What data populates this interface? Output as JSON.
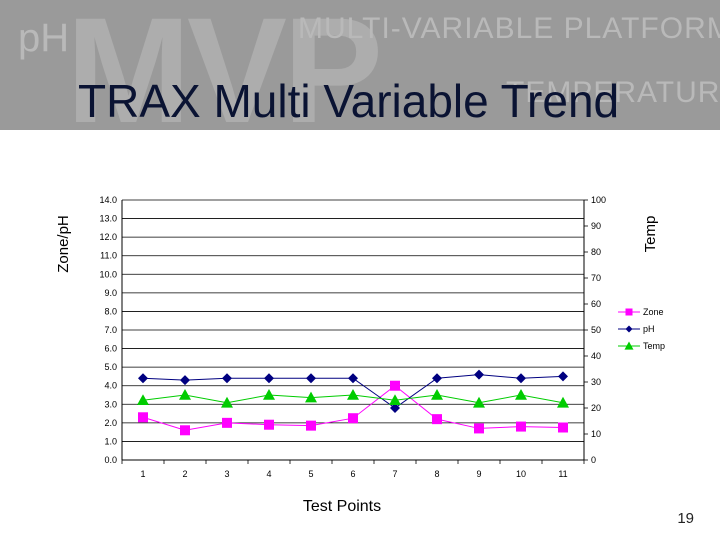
{
  "banner": {
    "watermark_ph": "pH",
    "watermark_mvp": "MVP",
    "watermark_line1": "MULTI-VARIABLE PLATFORM",
    "watermark_line2": "TEMPERATURE"
  },
  "slide": {
    "title": "TRAX Multi Variable Trend",
    "page_number": "19"
  },
  "chart_data": {
    "type": "line",
    "xlabel": "Test Points",
    "ylabel": "Zone/pH",
    "y2label": "Temp",
    "categories": [
      "1",
      "2",
      "3",
      "4",
      "5",
      "6",
      "7",
      "8",
      "9",
      "10",
      "11"
    ],
    "ylim": [
      0,
      14
    ],
    "y_ticks": [
      "0.0",
      "1.0",
      "2.0",
      "3.0",
      "4.0",
      "5.0",
      "6.0",
      "7.0",
      "8.0",
      "9.0",
      "10.0",
      "11.0",
      "12.0",
      "13.0",
      "14.0"
    ],
    "y2lim": [
      0,
      100
    ],
    "y2_ticks": [
      "0",
      "10",
      "20",
      "30",
      "40",
      "50",
      "60",
      "70",
      "80",
      "90",
      "100"
    ],
    "grid": "horizontal",
    "legend_position": "right",
    "series": [
      {
        "name": "Zone",
        "axis": "left",
        "marker": "square",
        "color": "#ff00ff",
        "values": [
          2.3,
          1.6,
          2.0,
          1.9,
          1.85,
          2.25,
          4.0,
          2.2,
          1.7,
          1.8,
          1.75
        ]
      },
      {
        "name": "pH",
        "axis": "left",
        "marker": "diamond",
        "color": "#000080",
        "values": [
          4.4,
          4.3,
          4.4,
          4.4,
          4.4,
          4.4,
          2.8,
          4.4,
          4.6,
          4.4,
          4.5
        ]
      },
      {
        "name": "Temp",
        "axis": "right",
        "marker": "triangle",
        "color": "#00cc00",
        "values": [
          23,
          25,
          22,
          25,
          24,
          25,
          23,
          25,
          22,
          25,
          22
        ]
      }
    ]
  }
}
